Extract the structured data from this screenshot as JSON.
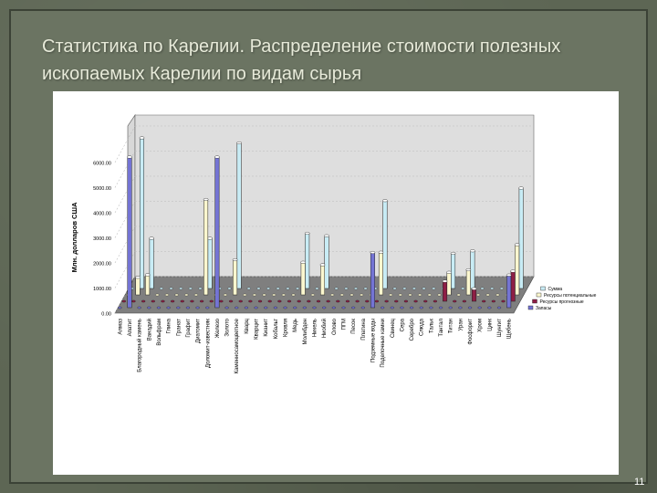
{
  "slide": {
    "title": "Статистика по Карелии. Распределение стоимости полезных ископаемых Карелии по видам сырья",
    "page_number": "11"
  },
  "chart_data": {
    "type": "bar",
    "ylabel": "Млн. долларов США",
    "ylim": [
      0,
      6000
    ],
    "yticks": [
      "0.00",
      "1000.00",
      "2000.00",
      "3000.00",
      "4000.00",
      "5000.00",
      "6000.00"
    ],
    "categories": [
      "Алмаз",
      "Апатит",
      "Благородный камень",
      "Ванадий",
      "Вольфрам",
      "Глина",
      "Гранат",
      "Графит",
      "Диатомит",
      "Доломит-известняк",
      "Железо",
      "Золото",
      "Каменносамоцветное",
      "Кварц",
      "Кварцит",
      "Кианит",
      "Кобальт",
      "Кровля",
      "Медь",
      "Молибден",
      "Никель",
      "Ниобий",
      "Олово",
      "ПГМ",
      "Песок",
      "Платина",
      "Подземные воды",
      "Поделочные камни",
      "Свинец",
      "Сера",
      "Серебро",
      "Слюда",
      "Тальк",
      "Тантал",
      "Титан",
      "Уран",
      "Фосфорит",
      "Хром",
      "Цинк",
      "Шунгит",
      "Щебень"
    ],
    "series": [
      {
        "name": "Сумма",
        "color": "#c8ecf5",
        "values": [
          0,
          6000,
          2000,
          0,
          0,
          0,
          0,
          0,
          2000,
          0,
          0,
          5800,
          0,
          0,
          0,
          0,
          0,
          0,
          2200,
          0,
          2100,
          0,
          0,
          0,
          0,
          0,
          3500,
          0,
          0,
          0,
          0,
          0,
          0,
          1400,
          0,
          1500,
          0,
          0,
          0,
          0,
          4000
        ]
      },
      {
        "name": "Ресурсы потенциальные",
        "color": "#fbf7cf",
        "values": [
          0,
          700,
          800,
          0,
          0,
          0,
          0,
          0,
          3800,
          0,
          0,
          1400,
          0,
          0,
          0,
          0,
          0,
          0,
          1300,
          0,
          1200,
          0,
          0,
          0,
          0,
          0,
          1700,
          0,
          0,
          0,
          0,
          0,
          0,
          900,
          0,
          1000,
          0,
          0,
          0,
          0,
          2000
        ]
      },
      {
        "name": "Ресурсы прогнозные",
        "color": "#8e1f45",
        "values": [
          0,
          0,
          0,
          0,
          0,
          0,
          0,
          0,
          0,
          0,
          0,
          0,
          0,
          0,
          0,
          0,
          0,
          0,
          0,
          0,
          0,
          0,
          0,
          0,
          0,
          0,
          0,
          0,
          0,
          0,
          0,
          0,
          0,
          800,
          0,
          0,
          500,
          0,
          0,
          0,
          1200
        ]
      },
      {
        "name": "Запасы",
        "color": "#7474d4",
        "values": [
          0,
          6000,
          0,
          0,
          0,
          0,
          0,
          0,
          0,
          0,
          6000,
          0,
          0,
          0,
          0,
          0,
          0,
          0,
          0,
          0,
          0,
          0,
          0,
          0,
          0,
          0,
          2200,
          0,
          0,
          0,
          0,
          0,
          0,
          0,
          0,
          0,
          0,
          0,
          0,
          0,
          1300
        ]
      }
    ]
  }
}
